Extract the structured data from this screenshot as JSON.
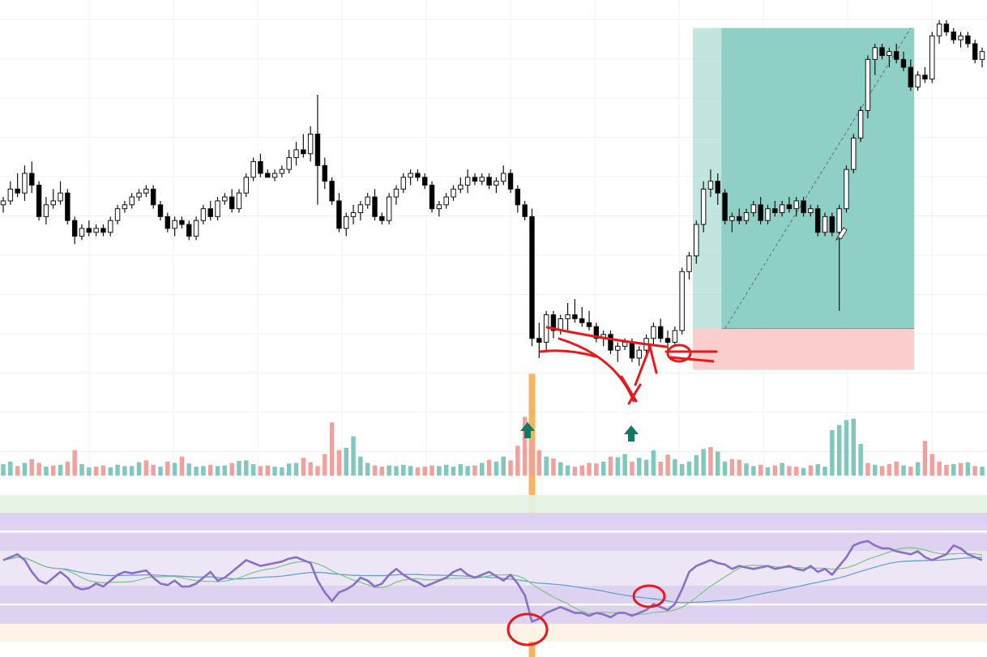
{
  "chart_data": {
    "type": "candlestick",
    "grid": true,
    "colors": {
      "up_body": "#ffffff",
      "down_body": "#000000",
      "wick": "#111111",
      "volume_up": "#7fc8bb",
      "volume_down": "#f2a09c",
      "rsi_line": "#8a6fc9",
      "rsi_ma_fast": "#7bc47f",
      "rsi_ma_slow": "#5b9bd5",
      "target_zone": "#8fd0c6",
      "stop_zone": "#f9c9c8",
      "annotation": "#e8191b",
      "signal_arrow": "#127a63",
      "highlight_bar": "#f4a742"
    },
    "price_range": [
      0,
      100
    ],
    "candles": [
      [
        52,
        54,
        50,
        53
      ],
      [
        53,
        58,
        52,
        56
      ],
      [
        56,
        60,
        54,
        55
      ],
      [
        55,
        62,
        53,
        60
      ],
      [
        60,
        63,
        55,
        57
      ],
      [
        57,
        58,
        48,
        49
      ],
      [
        49,
        54,
        47,
        52
      ],
      [
        52,
        56,
        51,
        53
      ],
      [
        53,
        58,
        52,
        55
      ],
      [
        55,
        56,
        47,
        48
      ],
      [
        48,
        49,
        42,
        44
      ],
      [
        44,
        47,
        43,
        46
      ],
      [
        46,
        48,
        44,
        45
      ],
      [
        45,
        47,
        44,
        46
      ],
      [
        46,
        47,
        44,
        45
      ],
      [
        45,
        49,
        44,
        48
      ],
      [
        48,
        52,
        47,
        51
      ],
      [
        51,
        53,
        50,
        52
      ],
      [
        52,
        55,
        51,
        54
      ],
      [
        54,
        56,
        53,
        55
      ],
      [
        55,
        57,
        54,
        56
      ],
      [
        56,
        57,
        51,
        52
      ],
      [
        52,
        53,
        48,
        49
      ],
      [
        49,
        50,
        45,
        46
      ],
      [
        46,
        49,
        44,
        48
      ],
      [
        48,
        49,
        46,
        47
      ],
      [
        47,
        48,
        43,
        44
      ],
      [
        44,
        49,
        43,
        48
      ],
      [
        48,
        52,
        47,
        51
      ],
      [
        51,
        53,
        48,
        49
      ],
      [
        49,
        54,
        48,
        53
      ],
      [
        53,
        55,
        52,
        54
      ],
      [
        54,
        56,
        50,
        51
      ],
      [
        51,
        56,
        50,
        55
      ],
      [
        55,
        60,
        54,
        59
      ],
      [
        59,
        64,
        58,
        63
      ],
      [
        63,
        65,
        59,
        60
      ],
      [
        60,
        61,
        59,
        59
      ],
      [
        59,
        61,
        58,
        60
      ],
      [
        60,
        62,
        59,
        61
      ],
      [
        61,
        66,
        60,
        64
      ],
      [
        64,
        68,
        62,
        66
      ],
      [
        66,
        70,
        64,
        65
      ],
      [
        65,
        72,
        63,
        70
      ],
      [
        70,
        80,
        52,
        62
      ],
      [
        62,
        64,
        56,
        58
      ],
      [
        58,
        59,
        52,
        53
      ],
      [
        53,
        55,
        45,
        46
      ],
      [
        46,
        50,
        44,
        49
      ],
      [
        49,
        52,
        47,
        50
      ],
      [
        50,
        53,
        48,
        52
      ],
      [
        52,
        55,
        51,
        54
      ],
      [
        54,
        56,
        48,
        49
      ],
      [
        49,
        50,
        47,
        48
      ],
      [
        48,
        55,
        47,
        54
      ],
      [
        54,
        57,
        52,
        56
      ],
      [
        56,
        60,
        55,
        59
      ],
      [
        59,
        61,
        57,
        60
      ],
      [
        60,
        61,
        58,
        59
      ],
      [
        59,
        60,
        56,
        57
      ],
      [
        57,
        58,
        50,
        51
      ],
      [
        51,
        53,
        49,
        52
      ],
      [
        52,
        55,
        51,
        54
      ],
      [
        54,
        57,
        53,
        56
      ],
      [
        56,
        59,
        55,
        57
      ],
      [
        57,
        61,
        55,
        59
      ],
      [
        59,
        60,
        57,
        58
      ],
      [
        58,
        60,
        57,
        59
      ],
      [
        59,
        60,
        56,
        57
      ],
      [
        57,
        59,
        55,
        58
      ],
      [
        58,
        62,
        57,
        60
      ],
      [
        60,
        61,
        55,
        56
      ],
      [
        56,
        57,
        50,
        52
      ],
      [
        52,
        53,
        48,
        49
      ],
      [
        49,
        51,
        16,
        18
      ],
      [
        18,
        22,
        13,
        17
      ],
      [
        17,
        25,
        15,
        24
      ],
      [
        24,
        25,
        18,
        20
      ],
      [
        20,
        24,
        19,
        23
      ],
      [
        23,
        27,
        20,
        24
      ],
      [
        24,
        28,
        22,
        23
      ],
      [
        23,
        26,
        21,
        22
      ],
      [
        22,
        25,
        20,
        21
      ],
      [
        21,
        22,
        17,
        18
      ],
      [
        18,
        20,
        16,
        19
      ],
      [
        19,
        20,
        14,
        15
      ],
      [
        15,
        17,
        12,
        16
      ],
      [
        16,
        18,
        15,
        17
      ],
      [
        17,
        18,
        12,
        13
      ],
      [
        13,
        16,
        11,
        15
      ],
      [
        15,
        19,
        14,
        18
      ],
      [
        18,
        22,
        16,
        21
      ],
      [
        21,
        23,
        17,
        18
      ],
      [
        18,
        20,
        15,
        17
      ],
      [
        17,
        21,
        16,
        20
      ],
      [
        20,
        36,
        19,
        35
      ],
      [
        35,
        40,
        33,
        39
      ],
      [
        39,
        48,
        37,
        47
      ],
      [
        47,
        58,
        45,
        56
      ],
      [
        56,
        61,
        54,
        58
      ],
      [
        58,
        60,
        52,
        55
      ],
      [
        55,
        56,
        47,
        48
      ],
      [
        48,
        50,
        45,
        49
      ],
      [
        49,
        51,
        47,
        48
      ],
      [
        48,
        51,
        47,
        50
      ],
      [
        50,
        53,
        49,
        52
      ],
      [
        52,
        54,
        47,
        48
      ],
      [
        48,
        52,
        47,
        51
      ],
      [
        51,
        53,
        49,
        50
      ],
      [
        50,
        53,
        49,
        52
      ],
      [
        52,
        54,
        50,
        51
      ],
      [
        51,
        54,
        49,
        53
      ],
      [
        53,
        54,
        49,
        50
      ],
      [
        50,
        52,
        49,
        51
      ],
      [
        51,
        52,
        44,
        45
      ],
      [
        45,
        50,
        44,
        49
      ],
      [
        49,
        50,
        44,
        45
      ],
      [
        45,
        52,
        25,
        51
      ],
      [
        51,
        62,
        50,
        61
      ],
      [
        61,
        70,
        60,
        69
      ],
      [
        69,
        77,
        68,
        76
      ],
      [
        76,
        90,
        74,
        89
      ],
      [
        89,
        93,
        85,
        92
      ],
      [
        92,
        93,
        89,
        90
      ],
      [
        90,
        92,
        87,
        91
      ],
      [
        91,
        93,
        88,
        89
      ],
      [
        89,
        91,
        86,
        87
      ],
      [
        87,
        89,
        81,
        82
      ],
      [
        82,
        86,
        81,
        85
      ],
      [
        85,
        87,
        83,
        84
      ],
      [
        84,
        96,
        83,
        95
      ],
      [
        95,
        99,
        93,
        98
      ],
      [
        98,
        99,
        95,
        96
      ],
      [
        96,
        97,
        93,
        94
      ],
      [
        94,
        96,
        92,
        95
      ],
      [
        95,
        96,
        92,
        93
      ],
      [
        93,
        94,
        88,
        89
      ],
      [
        89,
        92,
        87,
        91
      ]
    ],
    "volume": [
      18,
      22,
      15,
      20,
      26,
      20,
      14,
      16,
      17,
      22,
      40,
      18,
      13,
      14,
      16,
      13,
      17,
      15,
      15,
      21,
      24,
      17,
      14,
      22,
      20,
      30,
      19,
      14,
      15,
      17,
      15,
      16,
      20,
      23,
      24,
      18,
      15,
      16,
      14,
      13,
      19,
      20,
      28,
      21,
      15,
      34,
      84,
      40,
      44,
      62,
      30,
      20,
      16,
      14,
      16,
      15,
      17,
      15,
      13,
      14,
      16,
      15,
      17,
      14,
      18,
      15,
      16,
      20,
      25,
      22,
      30,
      24,
      47,
      93,
      55,
      40,
      30,
      27,
      21,
      16,
      14,
      16,
      20,
      19,
      22,
      30,
      29,
      34,
      22,
      28,
      25,
      40,
      22,
      33,
      26,
      18,
      22,
      32,
      42,
      45,
      38,
      22,
      26,
      25,
      19,
      15,
      17,
      13,
      16,
      20,
      15,
      14,
      12,
      16,
      18,
      14,
      72,
      80,
      88,
      90,
      50,
      20,
      17,
      15,
      18,
      22,
      16,
      14,
      21,
      55,
      34,
      22,
      17,
      18,
      20,
      21,
      15,
      14
    ],
    "volume_up": [
      1,
      1,
      0,
      1,
      0,
      0,
      1,
      0,
      1,
      0,
      0,
      1,
      1,
      0,
      0,
      1,
      1,
      1,
      1,
      1,
      0,
      0,
      1,
      0,
      1,
      0,
      1,
      1,
      1,
      0,
      1,
      1,
      0,
      1,
      1,
      1,
      0,
      0,
      1,
      1,
      1,
      1,
      0,
      0,
      0,
      0,
      0,
      0,
      1,
      1,
      1,
      1,
      0,
      0,
      1,
      1,
      1,
      1,
      0,
      0,
      0,
      1,
      1,
      1,
      1,
      1,
      0,
      1,
      0,
      1,
      1,
      0,
      0,
      0,
      0,
      0,
      1,
      0,
      1,
      1,
      0,
      0,
      0,
      0,
      1,
      0,
      1,
      1,
      0,
      1,
      1,
      1,
      0,
      0,
      1,
      1,
      1,
      1,
      1,
      0,
      1,
      1,
      0,
      0,
      1,
      1,
      0,
      1,
      0,
      1,
      0,
      0,
      1,
      0,
      1,
      1,
      1,
      1,
      1,
      1,
      1,
      0,
      1,
      0,
      0,
      0,
      1,
      0,
      1,
      0,
      0,
      0,
      0,
      1,
      0,
      1,
      0,
      1
    ],
    "rsi": [
      60,
      62,
      64,
      60,
      52,
      46,
      44,
      48,
      52,
      48,
      42,
      40,
      41,
      44,
      42,
      46,
      50,
      52,
      51,
      52,
      53,
      48,
      44,
      43,
      46,
      42,
      42,
      44,
      48,
      52,
      46,
      48,
      52,
      56,
      60,
      58,
      56,
      57,
      58,
      59,
      61,
      62,
      60,
      58,
      46,
      38,
      32,
      38,
      40,
      43,
      48,
      46,
      42,
      44,
      50,
      54,
      50,
      47,
      45,
      42,
      44,
      46,
      48,
      52,
      54,
      50,
      48,
      50,
      52,
      49,
      46,
      50,
      44,
      36,
      18,
      20,
      24,
      26,
      28,
      26,
      24,
      24,
      22,
      24,
      23,
      21,
      24,
      24,
      22,
      24,
      26,
      30,
      28,
      26,
      30,
      40,
      52,
      56,
      58,
      60,
      58,
      57,
      54,
      56,
      55,
      54,
      55,
      56,
      54,
      55,
      56,
      54,
      53,
      56,
      52,
      54,
      50,
      56,
      62,
      70,
      72,
      73,
      70,
      68,
      68,
      66,
      65,
      64,
      66,
      62,
      60,
      62,
      64,
      70,
      68,
      64,
      62,
      60
    ]
  }
}
